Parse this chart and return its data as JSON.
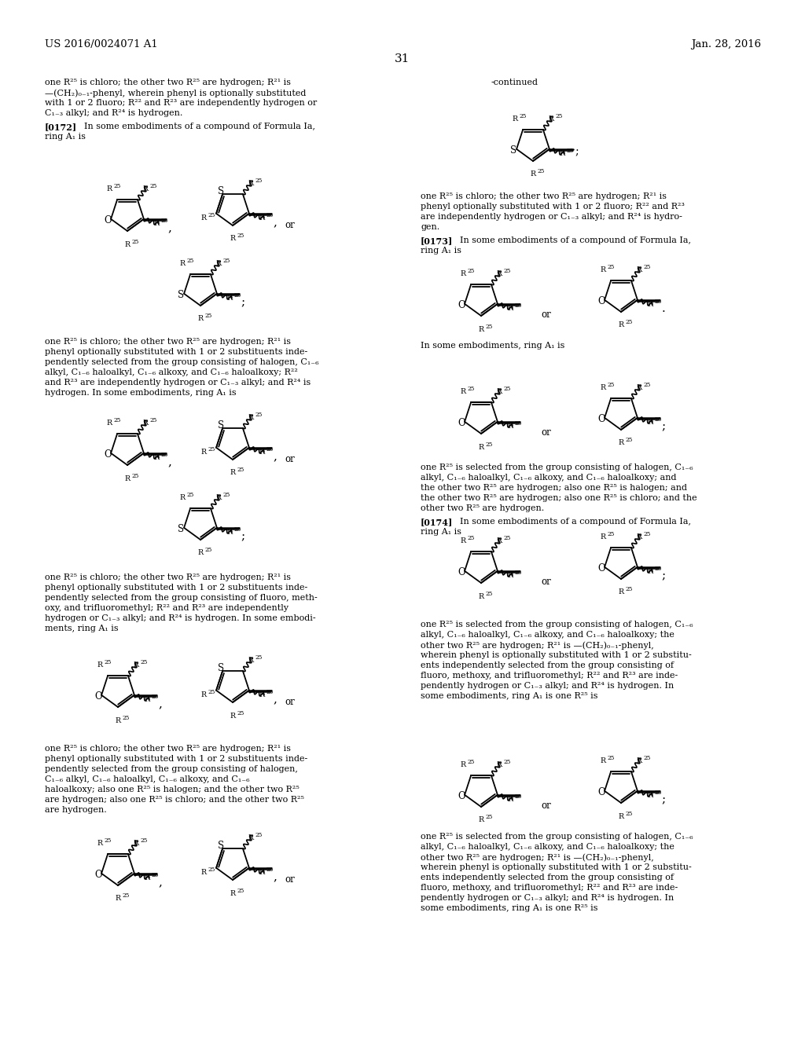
{
  "bg": "#ffffff",
  "header_left": "US 2016/0024071 A1",
  "header_right": "Jan. 28, 2016",
  "page_num": "31",
  "continued": "-continued"
}
